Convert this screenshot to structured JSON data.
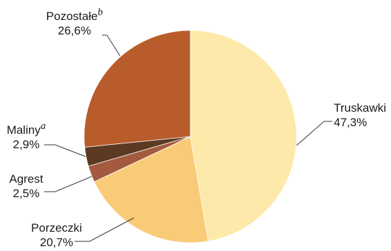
{
  "chart_data": {
    "type": "pie",
    "slices": [
      {
        "label": "Truskawki",
        "sup": "",
        "value": 47.3,
        "value_text": "47,3%",
        "color": "#FDE9A9"
      },
      {
        "label": "Porzeczki",
        "sup": "",
        "value": 20.7,
        "value_text": "20,7%",
        "color": "#F9CB78"
      },
      {
        "label": "Agrest",
        "sup": "",
        "value": 2.5,
        "value_text": "2,5%",
        "color": "#A35A3E"
      },
      {
        "label": "Maliny",
        "sup": "a",
        "value": 2.9,
        "value_text": "2,9%",
        "color": "#5C3A22"
      },
      {
        "label": "Pozostałe",
        "sup": "b",
        "value": 26.6,
        "value_text": "26,6%",
        "color": "#B85C2B"
      }
    ],
    "start_angle_deg": 0,
    "direction": "clockwise",
    "legend": "none"
  }
}
